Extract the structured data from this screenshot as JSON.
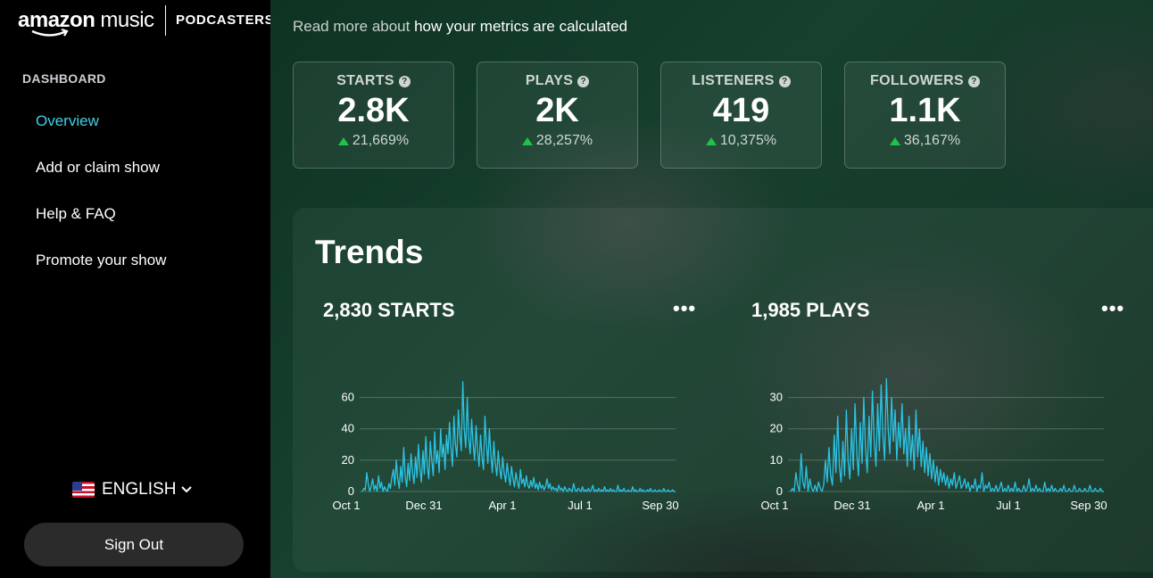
{
  "brand": {
    "name_bold": "amazon",
    "name_light": "music",
    "product": "PODCASTERS"
  },
  "sidebar": {
    "section": "DASHBOARD",
    "items": [
      {
        "label": "Overview",
        "active": true
      },
      {
        "label": "Add or claim show"
      },
      {
        "label": "Help & FAQ"
      },
      {
        "label": "Promote your show"
      }
    ],
    "language": "ENGLISH",
    "sign_out": "Sign Out"
  },
  "main": {
    "read_more_prefix": "Read more about ",
    "read_more_link": "how your metrics are calculated",
    "metrics": [
      {
        "label": "STARTS",
        "value": "2.8K",
        "change": "21,669%"
      },
      {
        "label": "PLAYS",
        "value": "2K",
        "change": "28,257%"
      },
      {
        "label": "LISTENERS",
        "value": "419",
        "change": "10,375%"
      },
      {
        "label": "FOLLOWERS",
        "value": "1.1K",
        "change": "36,167%"
      }
    ],
    "trends_title": "Trends",
    "more_label": "•••"
  },
  "colors": {
    "accent": "#3fd1e8",
    "line": "#2bc4e6",
    "up": "#21c14a"
  },
  "chart_data": [
    {
      "type": "line",
      "title": "2,830 STARTS",
      "x_ticks": [
        "Oct 1",
        "Dec 31",
        "Apr 1",
        "Jul 1",
        "Sep 30"
      ],
      "y_ticks": [
        0,
        20,
        40,
        60
      ],
      "ylim": [
        0,
        70
      ],
      "grid": true,
      "series": [
        {
          "values": [
            0,
            2,
            1,
            12,
            5,
            0,
            3,
            8,
            1,
            4,
            0,
            10,
            2,
            6,
            0,
            3,
            1,
            0,
            5,
            2,
            9,
            14,
            4,
            20,
            8,
            2,
            16,
            6,
            28,
            10,
            3,
            18,
            7,
            24,
            12,
            5,
            22,
            9,
            30,
            14,
            6,
            26,
            11,
            35,
            16,
            8,
            32,
            20,
            10,
            38,
            18,
            26,
            12,
            40,
            22,
            30,
            14,
            36,
            24,
            44,
            28,
            16,
            48,
            30,
            22,
            52,
            36,
            26,
            70,
            40,
            28,
            60,
            34,
            24,
            46,
            30,
            20,
            42,
            26,
            16,
            36,
            22,
            14,
            48,
            30,
            18,
            40,
            24,
            12,
            32,
            18,
            10,
            26,
            14,
            8,
            22,
            12,
            6,
            18,
            10,
            4,
            16,
            8,
            3,
            12,
            6,
            2,
            14,
            5,
            8,
            3,
            10,
            4,
            2,
            7,
            3,
            9,
            2,
            5,
            1,
            6,
            2,
            4,
            1,
            3,
            8,
            2,
            5,
            1,
            3,
            1,
            2,
            0,
            4,
            1,
            2,
            0,
            3,
            1,
            0,
            2,
            1,
            0,
            5,
            1,
            0,
            2,
            1,
            0,
            3,
            0,
            1,
            0,
            2,
            0,
            1,
            4,
            0,
            1,
            0,
            2,
            0,
            1,
            0,
            3,
            0,
            1,
            0,
            2,
            0,
            1,
            0,
            0,
            4,
            0,
            1,
            0,
            2,
            0,
            0,
            1,
            0,
            0,
            3,
            0,
            1,
            0,
            0,
            2,
            0,
            1,
            0,
            0,
            1,
            0,
            2,
            0,
            0,
            1,
            0,
            0,
            1,
            0,
            0,
            2,
            0,
            0,
            1,
            0,
            0,
            1,
            0,
            0
          ]
        }
      ]
    },
    {
      "type": "line",
      "title": "1,985 PLAYS",
      "x_ticks": [
        "Oct 1",
        "Dec 31",
        "Apr 1",
        "Jul 1",
        "Sep 30"
      ],
      "y_ticks": [
        0,
        10,
        20,
        30
      ],
      "ylim": [
        0,
        35
      ],
      "grid": true,
      "series": [
        {
          "values": [
            0,
            1,
            0,
            6,
            2,
            0,
            12,
            3,
            1,
            8,
            0,
            4,
            1,
            0,
            2,
            0,
            3,
            1,
            0,
            2,
            10,
            3,
            14,
            5,
            2,
            18,
            6,
            24,
            8,
            3,
            16,
            5,
            26,
            10,
            4,
            20,
            7,
            28,
            12,
            5,
            22,
            9,
            30,
            14,
            6,
            24,
            11,
            32,
            16,
            8,
            28,
            13,
            34,
            18,
            10,
            36,
            20,
            12,
            30,
            16,
            26,
            10,
            22,
            14,
            28,
            12,
            20,
            8,
            24,
            10,
            18,
            7,
            26,
            11,
            20,
            8,
            16,
            6,
            14,
            5,
            12,
            4,
            10,
            3,
            8,
            2,
            7,
            3,
            6,
            2,
            5,
            1,
            4,
            2,
            6,
            1,
            3,
            5,
            1,
            2,
            4,
            1,
            3,
            0,
            2,
            1,
            4,
            0,
            2,
            1,
            6,
            0,
            2,
            1,
            3,
            0,
            1,
            0,
            2,
            0,
            1,
            3,
            0,
            1,
            0,
            2,
            0,
            1,
            0,
            3,
            0,
            1,
            0,
            0,
            2,
            0,
            1,
            4,
            0,
            1,
            0,
            2,
            0,
            1,
            0,
            0,
            3,
            0,
            1,
            0,
            2,
            0,
            1,
            0,
            0,
            1,
            0,
            2,
            0,
            0,
            1,
            0,
            0,
            2,
            0,
            0,
            1,
            0,
            0,
            1,
            0,
            0,
            2,
            0,
            0,
            1,
            0,
            0,
            1,
            0,
            0
          ]
        }
      ]
    }
  ]
}
